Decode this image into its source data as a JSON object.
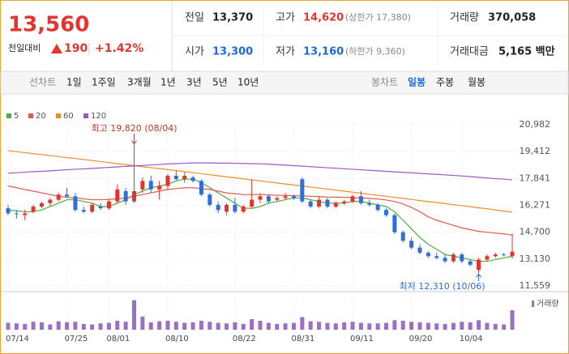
{
  "header": {
    "price": "13,560",
    "change_label": "전일대비",
    "change": "190",
    "change_pct": "+1.42%",
    "info": [
      {
        "label": "전일",
        "value": "13,370"
      },
      {
        "label": "고가",
        "value": "14,620",
        "note": "(상한가 17,380)"
      },
      {
        "label": "거래량",
        "value": "370,058"
      },
      {
        "label": "시가",
        "value": "13,300"
      },
      {
        "label": "저가",
        "value": "13,160",
        "note": "(하한가 9,360)"
      },
      {
        "label": "거래대금",
        "value": "5,165 백만"
      }
    ]
  },
  "tabs": {
    "line_label": "선차트",
    "line": [
      "1일",
      "1주일",
      "3개월",
      "1년",
      "3년",
      "5년",
      "10년"
    ],
    "candle_label": "봉차트",
    "candle": [
      "일봉",
      "주봉",
      "월봉"
    ],
    "active": "일봉"
  },
  "chart_data": {
    "type": "candlestick",
    "categories": [
      "07/14",
      null,
      null,
      null,
      null,
      null,
      null,
      "07/25",
      null,
      null,
      null,
      null,
      "08/01",
      null,
      null,
      null,
      null,
      null,
      null,
      "08/10",
      null,
      null,
      null,
      null,
      null,
      null,
      null,
      "08/22",
      null,
      null,
      null,
      null,
      null,
      null,
      "08/31",
      null,
      null,
      null,
      null,
      null,
      null,
      "09/11",
      null,
      null,
      null,
      null,
      null,
      null,
      "09/20",
      null,
      null,
      null,
      null,
      null,
      "10/04",
      null,
      null,
      null,
      null,
      null,
      null
    ],
    "open": [
      16100,
      15800,
      15700,
      15900,
      16200,
      16400,
      16600,
      16900,
      16800,
      16000,
      15900,
      16200,
      16100,
      16500,
      17100,
      16500,
      17200,
      17700,
      17200,
      17400,
      18000,
      17800,
      17900,
      17700,
      16900,
      16300,
      15900,
      16300,
      15900,
      16200,
      16600,
      16800,
      16600,
      16700,
      16800,
      17800,
      16500,
      16200,
      16600,
      16200,
      16400,
      16500,
      16800,
      16400,
      16300,
      16000,
      15700,
      14700,
      14200,
      13800,
      13500,
      13300,
      13200,
      13000,
      13400,
      13000,
      12500,
      13100,
      13300,
      13400,
      13300
    ],
    "high": [
      16300,
      16000,
      16000,
      16300,
      16500,
      16700,
      17000,
      17300,
      17000,
      16200,
      16400,
      16400,
      16600,
      17500,
      17300,
      19820,
      17900,
      18000,
      17700,
      18100,
      18300,
      18200,
      18000,
      17800,
      17000,
      16500,
      16400,
      16700,
      16300,
      17800,
      17000,
      16900,
      16800,
      17000,
      16900,
      17900,
      16600,
      16800,
      16700,
      16500,
      16600,
      16900,
      17100,
      16600,
      16400,
      16100,
      15800,
      14800,
      14400,
      14000,
      13600,
      13500,
      13400,
      13500,
      13500,
      13100,
      13200,
      13400,
      13500,
      13500,
      14620
    ],
    "low": [
      15700,
      15500,
      15400,
      15800,
      16100,
      16200,
      16500,
      16700,
      15900,
      15800,
      15800,
      16000,
      16000,
      16400,
      16300,
      16400,
      17000,
      17000,
      16600,
      17200,
      17700,
      17600,
      17600,
      16800,
      16200,
      15800,
      15700,
      15800,
      15800,
      16100,
      16400,
      16400,
      16500,
      16600,
      16600,
      16400,
      16100,
      16100,
      16100,
      16100,
      16300,
      16400,
      16300,
      16200,
      15900,
      15600,
      14600,
      14100,
      13700,
      13400,
      13200,
      13100,
      12900,
      12900,
      12900,
      12700,
      12310,
      13000,
      13200,
      13300,
      13160
    ],
    "close": [
      15800,
      15750,
      15800,
      16200,
      16400,
      16600,
      16900,
      16800,
      16000,
      15900,
      16300,
      16100,
      16500,
      17200,
      16500,
      17100,
      17700,
      17200,
      17400,
      18000,
      17800,
      18000,
      17700,
      16900,
      16300,
      16000,
      16300,
      15900,
      16200,
      16600,
      16800,
      16500,
      16700,
      16800,
      16700,
      16500,
      16200,
      16600,
      16200,
      16400,
      16500,
      16800,
      16400,
      16300,
      16000,
      15700,
      14700,
      14200,
      13800,
      13500,
      13300,
      13200,
      13000,
      13400,
      13000,
      12800,
      13100,
      13300,
      13400,
      13370,
      13560
    ],
    "up_color": "#e3342f",
    "down_color": "#2f6fd6",
    "series": [
      {
        "name": "5",
        "color": "#4caf3c",
        "values": [
          16000,
          15950,
          15900,
          15900,
          16000,
          16200,
          16400,
          16600,
          16600,
          16500,
          16400,
          16200,
          16200,
          16400,
          16600,
          16900,
          17100,
          17300,
          17400,
          17500,
          17700,
          17800,
          17800,
          17600,
          17300,
          17000,
          16700,
          16400,
          16100,
          16100,
          16200,
          16400,
          16500,
          16600,
          16700,
          16700,
          16600,
          16500,
          16400,
          16400,
          16400,
          16500,
          16500,
          16400,
          16300,
          16200,
          15900,
          15400,
          14900,
          14400,
          14000,
          13700,
          13400,
          13300,
          13200,
          13100,
          13000,
          13000,
          13100,
          13200,
          13300
        ]
      },
      {
        "name": "20",
        "color": "#e05a4e",
        "values": [
          17400,
          17300,
          17200,
          17100,
          17000,
          16900,
          16800,
          16750,
          16700,
          16650,
          16600,
          16600,
          16620,
          16650,
          16700,
          16800,
          16900,
          17000,
          17100,
          17200,
          17250,
          17300,
          17300,
          17250,
          17200,
          17100,
          17000,
          16950,
          16900,
          16900,
          16900,
          16880,
          16860,
          16850,
          16830,
          16820,
          16800,
          16780,
          16760,
          16750,
          16740,
          16720,
          16700,
          16680,
          16640,
          16580,
          16500,
          16350,
          16150,
          15900,
          15600,
          15400,
          15250,
          15100,
          14950,
          14850,
          14750,
          14700,
          14650,
          14600,
          14540
        ]
      },
      {
        "name": "60",
        "color": "#f08c28",
        "values": [
          19470,
          19410,
          19350,
          19290,
          19240,
          19180,
          19120,
          19060,
          19010,
          18950,
          18890,
          18830,
          18770,
          18710,
          18650,
          18590,
          18530,
          18470,
          18420,
          18360,
          18300,
          18240,
          18180,
          18120,
          18060,
          18000,
          17940,
          17880,
          17820,
          17760,
          17700,
          17640,
          17580,
          17520,
          17460,
          17400,
          17340,
          17280,
          17220,
          17160,
          17100,
          17040,
          16980,
          16920,
          16860,
          16800,
          16740,
          16680,
          16620,
          16550,
          16490,
          16430,
          16370,
          16310,
          16250,
          16190,
          16130,
          16070,
          16000,
          15940,
          15870
        ]
      },
      {
        "name": "120",
        "color": "#9b59c8",
        "values": [
          18150,
          18180,
          18210,
          18240,
          18260,
          18290,
          18320,
          18350,
          18380,
          18400,
          18430,
          18460,
          18490,
          18520,
          18550,
          18580,
          18600,
          18630,
          18660,
          18690,
          18710,
          18730,
          18750,
          18750,
          18750,
          18740,
          18740,
          18730,
          18720,
          18710,
          18700,
          18680,
          18650,
          18620,
          18590,
          18560,
          18530,
          18500,
          18470,
          18440,
          18410,
          18380,
          18350,
          18320,
          18290,
          18260,
          18230,
          18200,
          18170,
          18140,
          18110,
          18080,
          18050,
          18020,
          17990,
          17950,
          17910,
          17870,
          17830,
          17800,
          17760
        ]
      }
    ],
    "ylim": [
      11559,
      20982
    ],
    "yticks": [
      {
        "value": 20982,
        "label": "20,982"
      },
      {
        "value": 19412,
        "label": "19,412"
      },
      {
        "value": 17841,
        "label": "17,841"
      },
      {
        "value": 16271,
        "label": "16,271"
      },
      {
        "value": 14700,
        "label": "14,700"
      },
      {
        "value": 13130,
        "label": "13,130"
      },
      {
        "value": 11559,
        "label": "11,559"
      }
    ],
    "volume_label": "거래량",
    "volume_color": "#9b6fc4",
    "volume": [
      130000,
      120000,
      110000,
      150000,
      140000,
      100000,
      160000,
      140000,
      150000,
      110000,
      100000,
      120000,
      130000,
      170000,
      150000,
      560000,
      250000,
      140000,
      160000,
      170000,
      150000,
      130000,
      140000,
      170000,
      150000,
      130000,
      120000,
      140000,
      110000,
      200000,
      170000,
      130000,
      110000,
      120000,
      130000,
      240000,
      160000,
      150000,
      130000,
      120000,
      140000,
      150000,
      130000,
      120000,
      120000,
      130000,
      180000,
      170000,
      150000,
      140000,
      130000,
      120000,
      110000,
      130000,
      150000,
      140000,
      180000,
      130000,
      110000,
      100000,
      370058
    ],
    "volume_ylim": [
      0,
      600000
    ],
    "annotations": [
      {
        "text": "최고 19,820 (08/04)",
        "color": "#c0392b"
      },
      {
        "text": "최저 12,310 (10/06)",
        "color": "#2f6fd6"
      }
    ],
    "grid": true
  }
}
